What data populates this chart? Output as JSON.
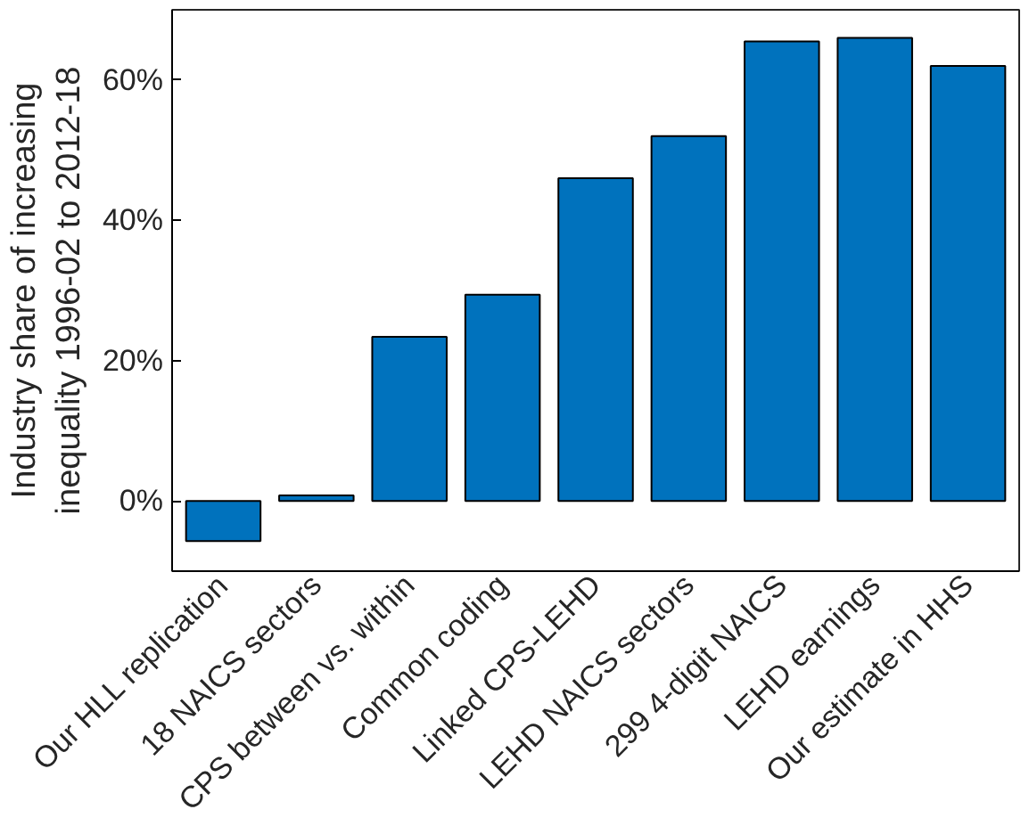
{
  "chart_data": {
    "type": "bar",
    "ylabel": "Industry share of increasing\ninequality 1996-02 to 2012-18",
    "categories": [
      "Our HLL replication",
      "18 NAICS sectors",
      "CPS between vs. within",
      "Common coding",
      "Linked CPS-LEHD",
      "LEHD NAICS sectors",
      "299 4-digit NAICS",
      "LEHD earnings",
      "Our estimate in HHS"
    ],
    "values": [
      -5.7,
      0.8,
      23.4,
      29.4,
      46,
      52,
      65.5,
      66,
      62
    ],
    "color": "#0072bd",
    "ylim": [
      -10,
      70
    ],
    "yticks": [
      {
        "value": 0,
        "label": "0%"
      },
      {
        "value": 20,
        "label": "20%"
      },
      {
        "value": 40,
        "label": "40%"
      },
      {
        "value": 60,
        "label": "60%"
      }
    ],
    "grid": false
  }
}
